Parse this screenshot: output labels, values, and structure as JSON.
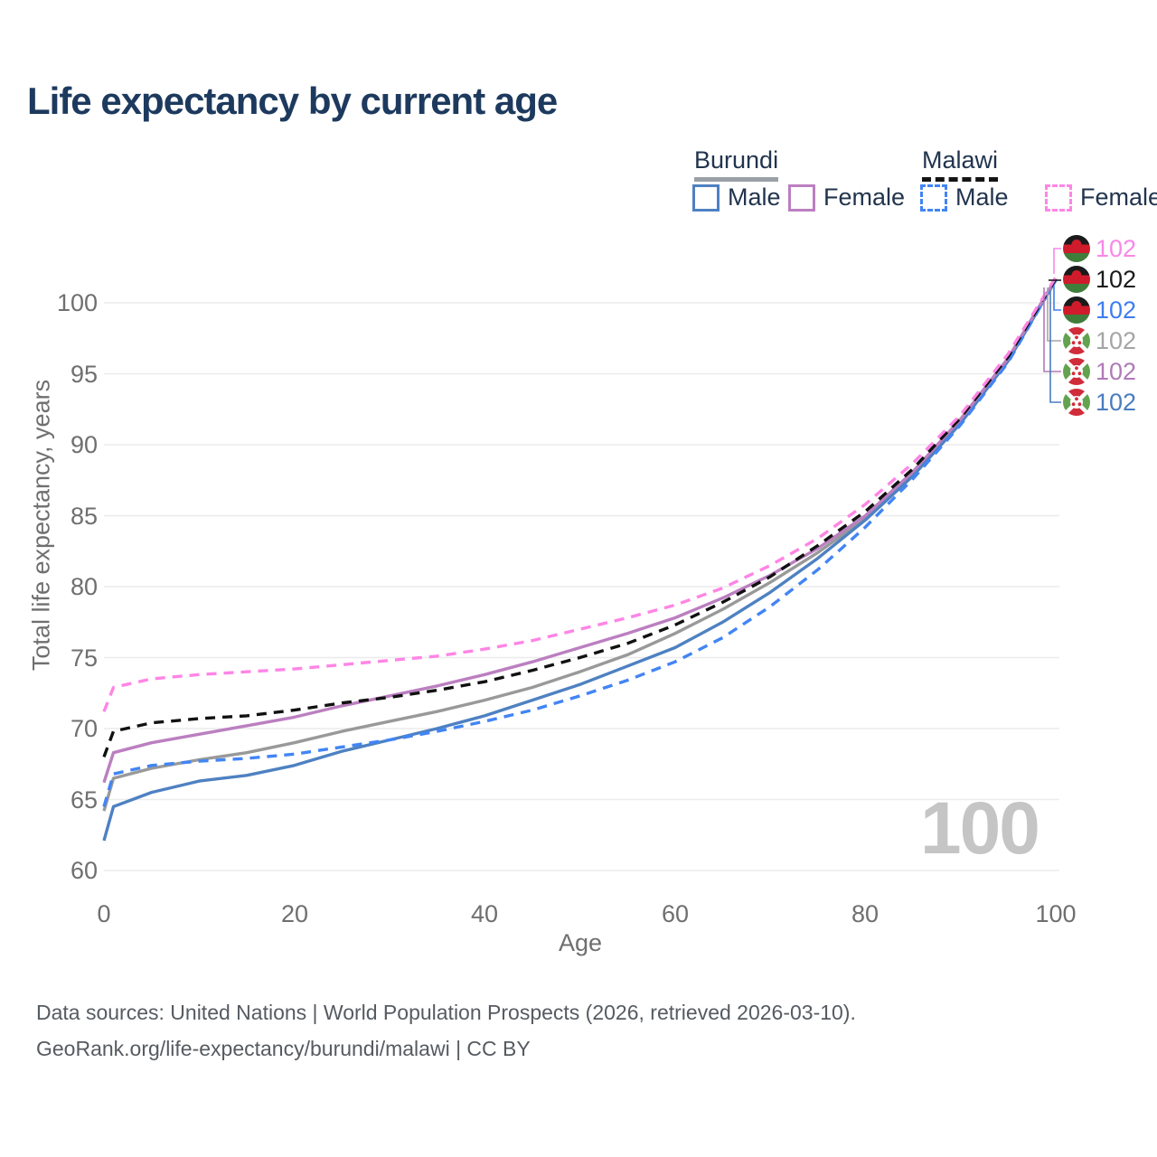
{
  "title": "Life expectancy by current age",
  "legend": {
    "groups": [
      {
        "name": "Burundi",
        "line_style": "solid",
        "underline_color": "#9aa0a6",
        "items": [
          {
            "label": "Male",
            "color": "#4e81c2"
          },
          {
            "label": "Female",
            "color": "#bb7fc0"
          }
        ]
      },
      {
        "name": "Malawi",
        "line_style": "dashed",
        "underline_color": "#141414",
        "items": [
          {
            "label": "Male",
            "color": "#4285f4"
          },
          {
            "label": "Female",
            "color": "#ff85e5"
          }
        ]
      }
    ]
  },
  "watermark": "100",
  "end_labels": [
    {
      "flag": "malawi",
      "series": "Malawi Female",
      "value": "102",
      "color": "#f987e8"
    },
    {
      "flag": "malawi",
      "series": "Malawi Both",
      "value": "102",
      "color": "#1a1a1a"
    },
    {
      "flag": "malawi",
      "series": "Malawi Male",
      "value": "102",
      "color": "#3d7ef0"
    },
    {
      "flag": "burundi",
      "series": "Burundi Both",
      "value": "102",
      "color": "#a5a5a5"
    },
    {
      "flag": "burundi",
      "series": "Burundi Female",
      "value": "102",
      "color": "#b07ab8"
    },
    {
      "flag": "burundi",
      "series": "Burundi Male",
      "value": "102",
      "color": "#4a7cc0"
    }
  ],
  "footer": {
    "line1": "Data sources: United Nations | World Population Prospects (2026, retrieved 2026-03-10).",
    "line2": "GeoRank.org/life-expectancy/burundi/malawi | CC BY"
  },
  "chart_data": {
    "type": "line",
    "title": "Life expectancy by current age",
    "xlabel": "Age",
    "ylabel": "Total life expectancy, years",
    "xlim": [
      0,
      100
    ],
    "ylim": [
      60,
      100
    ],
    "xticks": [
      0,
      20,
      40,
      60,
      80,
      100
    ],
    "yticks": [
      60,
      65,
      70,
      75,
      80,
      85,
      90,
      95,
      100
    ],
    "grid": "horizontal",
    "legend_position": "top-right",
    "current_age_indicator": 100,
    "x": [
      0,
      1,
      5,
      10,
      15,
      20,
      25,
      30,
      35,
      40,
      45,
      50,
      55,
      60,
      65,
      70,
      75,
      80,
      85,
      90,
      95,
      100
    ],
    "series": [
      {
        "name": "Burundi Male",
        "country": "Burundi",
        "sex": "Male",
        "color": "#4e81c2",
        "dash": false,
        "values": [
          62.1,
          64.5,
          65.5,
          66.3,
          66.7,
          67.4,
          68.4,
          69.2,
          70.0,
          70.9,
          72.0,
          73.1,
          74.4,
          75.7,
          77.5,
          79.6,
          82.0,
          84.7,
          87.8,
          91.5,
          95.9,
          101.6
        ]
      },
      {
        "name": "Burundi Female",
        "country": "Burundi",
        "sex": "Female",
        "color": "#bb7fc0",
        "dash": false,
        "values": [
          66.2,
          68.3,
          69.0,
          69.6,
          70.2,
          70.8,
          71.6,
          72.3,
          73.0,
          73.8,
          74.7,
          75.7,
          76.7,
          77.8,
          79.2,
          80.8,
          82.7,
          85.0,
          88.1,
          91.8,
          96.1,
          101.7
        ]
      },
      {
        "name": "Burundi Both sexes",
        "country": "Burundi",
        "sex": "Both",
        "color": "#999999",
        "dash": false,
        "values": [
          64.2,
          66.5,
          67.2,
          67.8,
          68.3,
          69.0,
          69.8,
          70.5,
          71.2,
          72.0,
          72.9,
          74.0,
          75.2,
          76.7,
          78.4,
          80.3,
          82.4,
          84.8,
          87.9,
          91.6,
          96.0,
          101.6
        ]
      },
      {
        "name": "Malawi Male",
        "country": "Malawi",
        "sex": "Male",
        "color": "#4285f4",
        "dash": true,
        "values": [
          64.5,
          66.8,
          67.4,
          67.7,
          67.9,
          68.2,
          68.7,
          69.2,
          69.8,
          70.5,
          71.3,
          72.3,
          73.4,
          74.7,
          76.4,
          78.6,
          81.2,
          84.2,
          87.6,
          91.4,
          95.8,
          101.6
        ]
      },
      {
        "name": "Malawi Female",
        "country": "Malawi",
        "sex": "Female",
        "color": "#ff85e5",
        "dash": true,
        "values": [
          71.2,
          72.9,
          73.5,
          73.8,
          74.0,
          74.2,
          74.5,
          74.8,
          75.1,
          75.6,
          76.2,
          77.0,
          77.8,
          78.7,
          79.9,
          81.5,
          83.4,
          85.8,
          88.7,
          92.1,
          96.4,
          101.8
        ]
      },
      {
        "name": "Malawi Both sexes",
        "country": "Malawi",
        "sex": "Both",
        "color": "#111111",
        "dash": true,
        "values": [
          68.0,
          69.8,
          70.4,
          70.7,
          70.9,
          71.3,
          71.8,
          72.2,
          72.7,
          73.3,
          74.1,
          75.0,
          76.0,
          77.3,
          78.9,
          80.7,
          82.9,
          85.3,
          88.3,
          91.9,
          96.2,
          101.7
        ]
      }
    ]
  }
}
